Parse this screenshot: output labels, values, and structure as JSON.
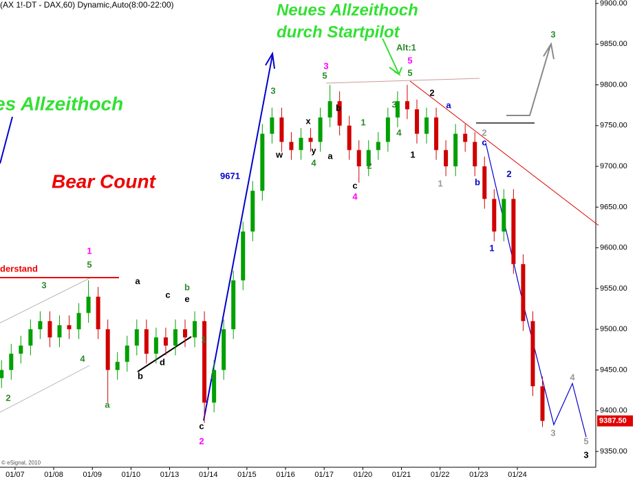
{
  "chart_data": {
    "type": "candlestick",
    "title": "(AX 1!-DT - DAX,60) Dynamic,Auto(8:00-22:00)",
    "xlim": [
      -0.39,
      15.03
    ],
    "ylim": [
      9330.6,
      9904.2
    ],
    "xticks": [
      {
        "value": 0,
        "label": "01/07"
      },
      {
        "value": 1,
        "label": "01/08"
      },
      {
        "value": 2,
        "label": "01/09"
      },
      {
        "value": 3,
        "label": "01/10"
      },
      {
        "value": 4,
        "label": "01/13"
      },
      {
        "value": 5,
        "label": "01/14"
      },
      {
        "value": 6,
        "label": "01/15"
      },
      {
        "value": 7,
        "label": "01/16"
      },
      {
        "value": 8,
        "label": "01/17"
      },
      {
        "value": 9,
        "label": "01/20"
      },
      {
        "value": 10,
        "label": "01/21"
      },
      {
        "value": 11,
        "label": "01/22"
      },
      {
        "value": 12,
        "label": "01/23"
      },
      {
        "value": 13,
        "label": "01/24"
      }
    ],
    "yticks": [
      {
        "value": 9350,
        "label": "9350.00"
      },
      {
        "value": 9400,
        "label": "9400.00"
      },
      {
        "value": 9450,
        "label": "9450.00"
      },
      {
        "value": 9500,
        "label": "9500.00"
      },
      {
        "value": 9550,
        "label": "9550.00"
      },
      {
        "value": 9600,
        "label": "9600.00"
      },
      {
        "value": 9650,
        "label": "9650.00"
      },
      {
        "value": 9700,
        "label": "9700.00"
      },
      {
        "value": 9750,
        "label": "9750.00"
      },
      {
        "value": 9800,
        "label": "9800.00"
      },
      {
        "value": 9850,
        "label": "9850.00"
      },
      {
        "value": 9900,
        "label": "9900.00"
      }
    ],
    "up_color": "#00a000",
    "down_color": "#d00000",
    "x": [
      -0.35,
      -0.1,
      0.15,
      0.4,
      0.65,
      0.9,
      1.15,
      1.4,
      1.65,
      1.9,
      2.15,
      2.4,
      2.65,
      2.9,
      3.15,
      3.4,
      3.65,
      3.9,
      4.15,
      4.4,
      4.65,
      4.9,
      5.15,
      5.4,
      5.65,
      5.9,
      6.15,
      6.4,
      6.65,
      6.9,
      7.15,
      7.4,
      7.65,
      7.9,
      8.15,
      8.4,
      8.65,
      8.9,
      9.15,
      9.4,
      9.65,
      9.9,
      10.15,
      10.4,
      10.65,
      10.9,
      11.15,
      11.4,
      11.65,
      11.9,
      12.15,
      12.4,
      12.65,
      12.9,
      13.15,
      13.4,
      13.65
    ],
    "open": [
      9440,
      9450,
      9470,
      9480,
      9500,
      9510,
      9490,
      9505,
      9500,
      9520,
      9540,
      9500,
      9450,
      9460,
      9480,
      9500,
      9470,
      9490,
      9480,
      9500,
      9490,
      9510,
      9410,
      9450,
      9500,
      9560,
      9620,
      9670,
      9740,
      9760,
      9730,
      9720,
      9735,
      9730,
      9760,
      9780,
      9750,
      9720,
      9700,
      9720,
      9730,
      9760,
      9780,
      9770,
      9740,
      9760,
      9720,
      9700,
      9740,
      9730,
      9700,
      9660,
      9620,
      9660,
      9580,
      9510,
      9430
    ],
    "high": [
      9462,
      9482,
      9492,
      9512,
      9522,
      9522,
      9517,
      9517,
      9532,
      9560,
      9552,
      9512,
      9472,
      9492,
      9512,
      9512,
      9502,
      9502,
      9512,
      9512,
      9522,
      9522,
      9462,
      9512,
      9572,
      9632,
      9682,
      9752,
      9772,
      9772,
      9742,
      9747,
      9747,
      9772,
      9800,
      9792,
      9762,
      9732,
      9732,
      9742,
      9772,
      9792,
      9800,
      9782,
      9772,
      9772,
      9732,
      9752,
      9752,
      9742,
      9712,
      9672,
      9672,
      9672,
      9592,
      9522,
      9442
    ],
    "low": [
      9428,
      9438,
      9458,
      9468,
      9488,
      9478,
      9478,
      9488,
      9488,
      9508,
      9488,
      9410,
      9438,
      9448,
      9468,
      9458,
      9458,
      9468,
      9468,
      9478,
      9478,
      9385,
      9398,
      9438,
      9488,
      9548,
      9608,
      9658,
      9728,
      9718,
      9708,
      9708,
      9718,
      9718,
      9748,
      9738,
      9708,
      9680,
      9688,
      9708,
      9718,
      9748,
      9758,
      9728,
      9728,
      9708,
      9688,
      9688,
      9718,
      9688,
      9648,
      9608,
      9608,
      9568,
      9498,
      9418,
      9380
    ],
    "close": [
      9450,
      9470,
      9480,
      9500,
      9510,
      9490,
      9505,
      9500,
      9520,
      9540,
      9500,
      9450,
      9460,
      9480,
      9500,
      9470,
      9490,
      9480,
      9500,
      9490,
      9510,
      9410,
      9450,
      9500,
      9560,
      9620,
      9670,
      9740,
      9760,
      9730,
      9720,
      9735,
      9730,
      9760,
      9780,
      9750,
      9720,
      9700,
      9720,
      9730,
      9760,
      9780,
      9770,
      9740,
      9760,
      9720,
      9700,
      9740,
      9730,
      9700,
      9660,
      9620,
      9660,
      9580,
      9510,
      9430,
      9387.5
    ],
    "last_price": {
      "value": 9387.5,
      "label": "9387.50"
    }
  },
  "annotations": [
    "Neues Allzeithoch",
    "durch Startpilot",
    "es Allzeithoch",
    "Bear Count",
    "Alt:1",
    "9671",
    "derstand",
    "© eSignal, 2010",
    "1",
    "5",
    "3",
    "4",
    "2",
    "a",
    "a",
    "b",
    "d",
    "c",
    "e",
    "b",
    "1",
    "2",
    "c",
    "2",
    "3",
    "w",
    "x",
    "y",
    "4",
    "3",
    "5",
    "b",
    "a",
    "1",
    "c",
    "4",
    "2",
    "3",
    "4",
    "1",
    "5",
    "5",
    "2",
    "a",
    "2",
    "c",
    "b",
    "1",
    "2",
    "1",
    "3",
    "3",
    "4",
    "5",
    "3"
  ]
}
